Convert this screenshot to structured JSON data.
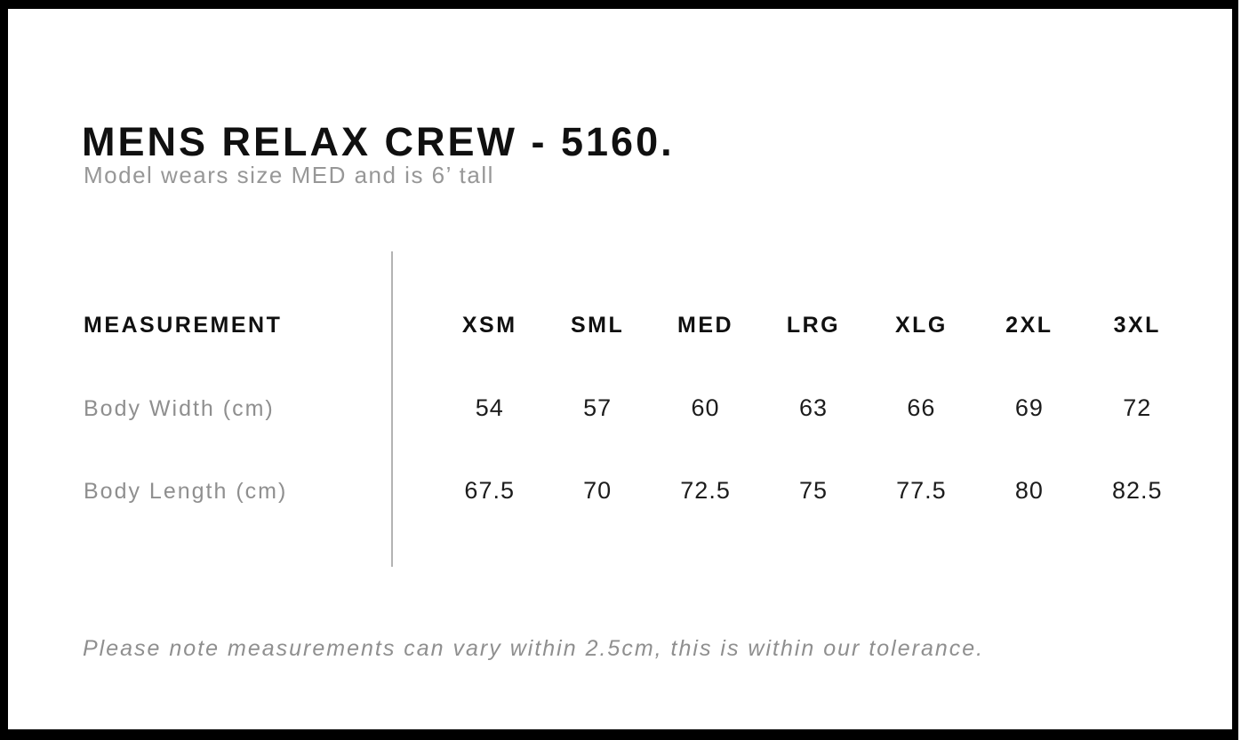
{
  "header": {
    "title": "MENS RELAX CREW - 5160.",
    "subtitle": "Model wears size MED and is 6’ tall"
  },
  "table": {
    "measurement_label": "MEASUREMENT",
    "sizes": [
      "XSM",
      "SML",
      "MED",
      "LRG",
      "XLG",
      "2XL",
      "3XL"
    ],
    "rows": [
      {
        "label": "Body Width (cm)",
        "values": [
          "54",
          "57",
          "60",
          "63",
          "66",
          "69",
          "72"
        ]
      },
      {
        "label": "Body Length (cm)",
        "values": [
          "67.5",
          "70",
          "72.5",
          "75",
          "77.5",
          "80",
          "82.5"
        ]
      }
    ]
  },
  "footer": {
    "note": "Please note measurements can vary within 2.5cm, this is within our tolerance."
  },
  "colors": {
    "background": "#ffffff",
    "frame": "#000000",
    "text": "#101010",
    "muted": "#8f8f8f",
    "divider": "#b3b3b3"
  }
}
